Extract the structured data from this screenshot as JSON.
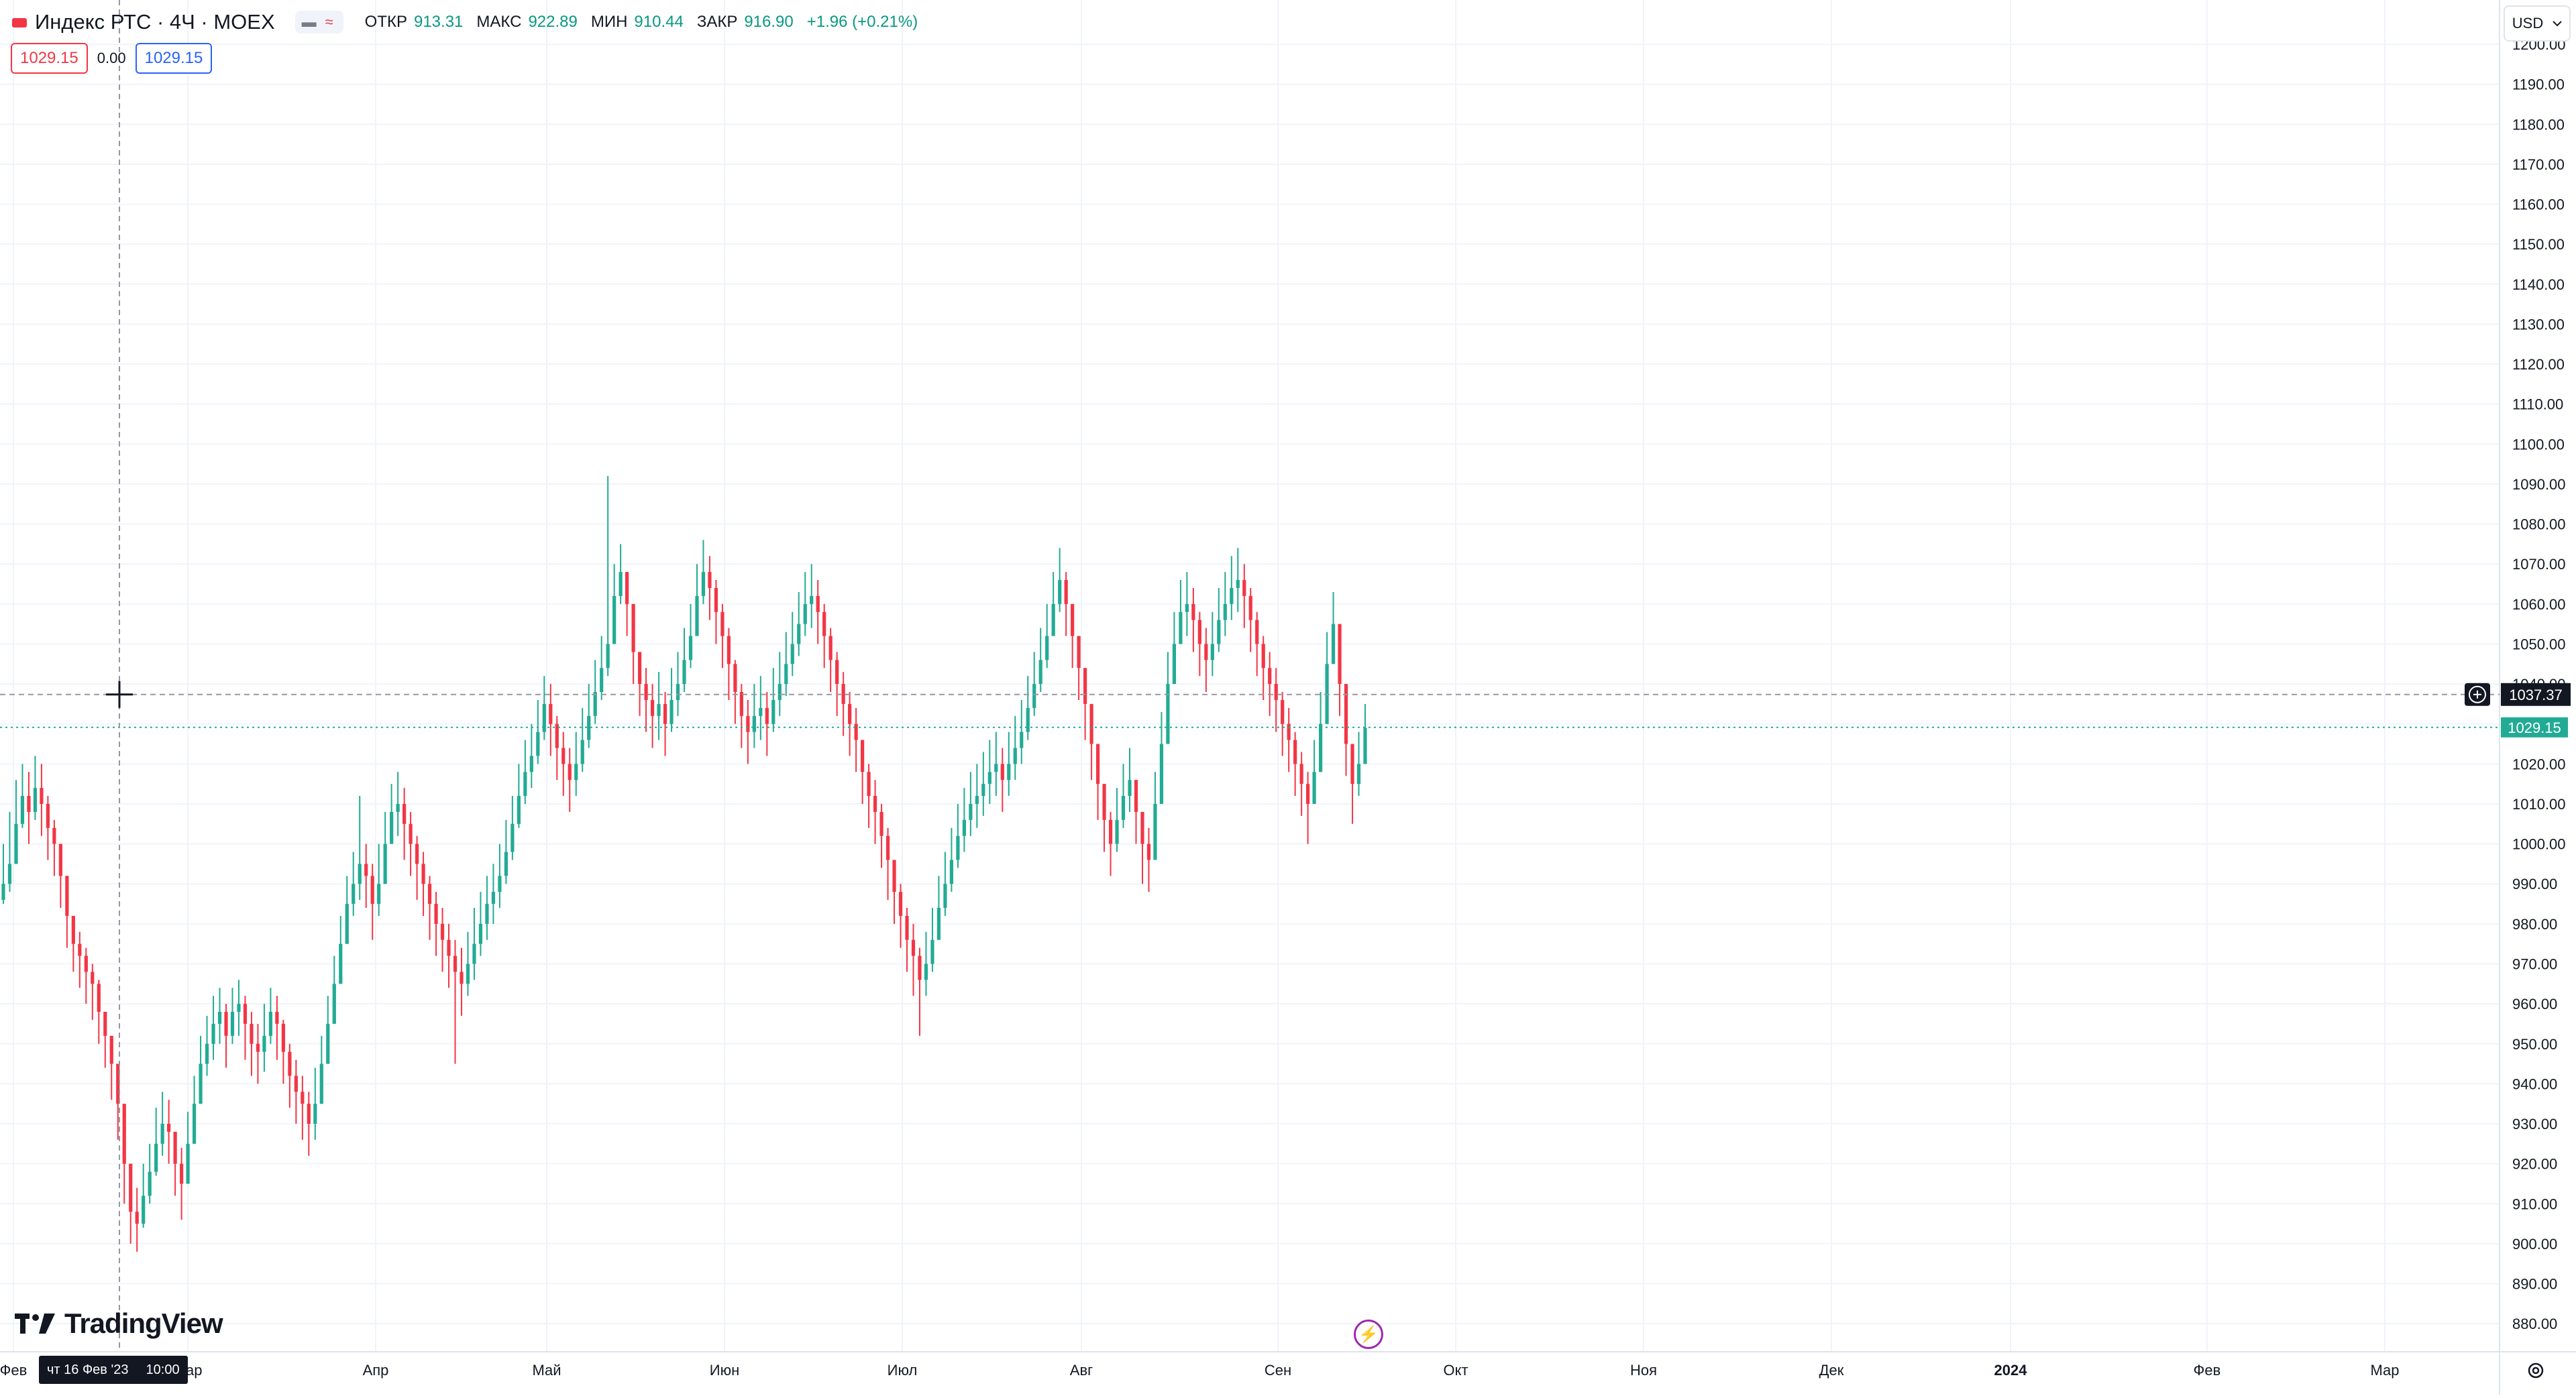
{
  "header": {
    "symbol_title": "Индекс РТС · 4Ч · MOEX",
    "mode_chip": [
      "▬",
      "≈"
    ],
    "ohlc": [
      {
        "key": "ОТКР",
        "value": "913.31"
      },
      {
        "key": "МАКС",
        "value": "922.89"
      },
      {
        "key": "МИН",
        "value": "910.44"
      },
      {
        "key": "ЗАКР",
        "value": "916.90"
      },
      {
        "key": "",
        "value": "+1.96 (+0.21%)"
      }
    ]
  },
  "trade": {
    "sell_price": "1029.15",
    "spread": "0.00",
    "buy_price": "1029.15"
  },
  "currency": {
    "label": "USD",
    "icon": "chevron-down-icon"
  },
  "crosshair": {
    "price_label": "1037.37",
    "time_label_day": "чт 16 Фев '23",
    "time_label_time": "10:00",
    "plus_icon": "plus-circle-icon"
  },
  "last_price": {
    "label": "1029.15",
    "color": "#22ab94"
  },
  "logo": {
    "text": "TradingView"
  },
  "colors": {
    "up": "#22ab94",
    "down": "#f23645",
    "grid": "#f0f3fa",
    "axis_text": "#131722"
  },
  "chart_data": {
    "type": "candlestick",
    "y_axis_ticks": [
      "1200.00",
      "1190.00",
      "1180.00",
      "1170.00",
      "1160.00",
      "1150.00",
      "1140.00",
      "1130.00",
      "1120.00",
      "1110.00",
      "1100.00",
      "1090.00",
      "1080.00",
      "1070.00",
      "1060.00",
      "1050.00",
      "1040.00",
      "1030.00",
      "1020.00",
      "1010.00",
      "1000.00",
      "990.00",
      "980.00",
      "970.00",
      "960.00",
      "950.00",
      "940.00",
      "930.00",
      "920.00",
      "910.00",
      "900.00",
      "890.00",
      "880.00"
    ],
    "x_axis_ticks": [
      {
        "label": "Фев",
        "month": 0
      },
      {
        "label": "Мар",
        "month": 1
      },
      {
        "label": "Апр",
        "month": 2
      },
      {
        "label": "Май",
        "month": 3
      },
      {
        "label": "Июн",
        "month": 4
      },
      {
        "label": "Июл",
        "month": 5
      },
      {
        "label": "Авг",
        "month": 6
      },
      {
        "label": "Сен",
        "month": 7
      },
      {
        "label": "Окт",
        "month": 8
      },
      {
        "label": "Ноя",
        "month": 9
      },
      {
        "label": "Дек",
        "month": 10
      },
      {
        "label": "2024",
        "month": 11
      },
      {
        "label": "Фев",
        "month": 12
      },
      {
        "label": "Мар",
        "month": 13
      }
    ],
    "ylim": [
      875,
      1205
    ],
    "series_close": [
      990,
      995,
      1005,
      1012,
      1008,
      1014,
      1010,
      1004,
      1000,
      992,
      982,
      975,
      972,
      968,
      965,
      958,
      952,
      945,
      935,
      920,
      908,
      905,
      912,
      918,
      925,
      930,
      928,
      920,
      915,
      925,
      935,
      945,
      950,
      955,
      958,
      952,
      958,
      960,
      955,
      950,
      948,
      952,
      958,
      955,
      948,
      942,
      938,
      935,
      930,
      935,
      945,
      955,
      965,
      975,
      985,
      990,
      995,
      992,
      985,
      990,
      1000,
      1008,
      1010,
      1005,
      1000,
      995,
      990,
      985,
      980,
      976,
      972,
      968,
      965,
      970,
      975,
      980,
      985,
      988,
      992,
      998,
      1005,
      1012,
      1018,
      1022,
      1028,
      1035,
      1030,
      1024,
      1020,
      1016,
      1020,
      1026,
      1032,
      1038,
      1044,
      1050,
      1062,
      1068,
      1060,
      1048,
      1040,
      1036,
      1032,
      1035,
      1030,
      1036,
      1040,
      1046,
      1052,
      1062,
      1068,
      1064,
      1058,
      1052,
      1045,
      1038,
      1032,
      1028,
      1032,
      1034,
      1030,
      1036,
      1040,
      1045,
      1050,
      1055,
      1060,
      1062,
      1058,
      1052,
      1046,
      1040,
      1035,
      1030,
      1026,
      1018,
      1012,
      1008,
      1002,
      996,
      988,
      982,
      976,
      972,
      966,
      970,
      976,
      984,
      990,
      996,
      1002,
      1006,
      1010,
      1012,
      1015,
      1018,
      1020,
      1016,
      1020,
      1024,
      1028,
      1034,
      1040,
      1046,
      1052,
      1060,
      1066,
      1060,
      1052,
      1044,
      1035,
      1025,
      1015,
      1006,
      1000,
      1006,
      1012,
      1016,
      1008,
      1000,
      996,
      1010,
      1025,
      1040,
      1050,
      1058,
      1060,
      1056,
      1050,
      1046,
      1050,
      1056,
      1060,
      1064,
      1066,
      1062,
      1056,
      1050,
      1044,
      1040,
      1036,
      1030,
      1026,
      1020,
      1015,
      1010,
      1018,
      1030,
      1045,
      1055,
      1040,
      1025,
      1015,
      1020,
      1029
    ],
    "series_high": [
      1000,
      1008,
      1016,
      1020,
      1018,
      1022,
      1020,
      1012,
      1006,
      1000,
      990,
      982,
      978,
      974,
      970,
      966,
      958,
      952,
      945,
      935,
      918,
      914,
      920,
      925,
      934,
      938,
      936,
      928,
      924,
      933,
      942,
      952,
      957,
      962,
      964,
      960,
      964,
      966,
      962,
      958,
      955,
      960,
      964,
      962,
      956,
      950,
      946,
      942,
      938,
      944,
      952,
      962,
      972,
      982,
      992,
      998,
      1012,
      1000,
      995,
      1000,
      1008,
      1015,
      1018,
      1014,
      1008,
      1002,
      998,
      992,
      988,
      984,
      980,
      976,
      974,
      978,
      984,
      988,
      992,
      995,
      1000,
      1006,
      1012,
      1020,
      1026,
      1030,
      1036,
      1042,
      1040,
      1032,
      1028,
      1024,
      1028,
      1034,
      1040,
      1046,
      1052,
      1092,
      1070,
      1075,
      1068,
      1056,
      1048,
      1044,
      1040,
      1043,
      1038,
      1044,
      1048,
      1054,
      1060,
      1070,
      1076,
      1072,
      1066,
      1060,
      1054,
      1046,
      1040,
      1036,
      1040,
      1042,
      1038,
      1044,
      1048,
      1053,
      1058,
      1063,
      1068,
      1070,
      1066,
      1060,
      1054,
      1048,
      1043,
      1038,
      1034,
      1026,
      1020,
      1016,
      1010,
      1004,
      996,
      990,
      984,
      980,
      974,
      978,
      984,
      992,
      998,
      1004,
      1010,
      1014,
      1018,
      1020,
      1023,
      1026,
      1028,
      1024,
      1028,
      1032,
      1036,
      1042,
      1048,
      1054,
      1060,
      1068,
      1074,
      1068,
      1060,
      1052,
      1043,
      1033,
      1023,
      1014,
      1008,
      1014,
      1020,
      1024,
      1016,
      1008,
      1004,
      1018,
      1033,
      1048,
      1058,
      1066,
      1068,
      1064,
      1058,
      1054,
      1058,
      1064,
      1068,
      1072,
      1074,
      1070,
      1064,
      1058,
      1052,
      1048,
      1044,
      1038,
      1034,
      1028,
      1023,
      1018,
      1026,
      1038,
      1053,
      1063,
      1048,
      1033,
      1023,
      1028,
      1035
    ],
    "series_low": [
      985,
      988,
      998,
      1004,
      1000,
      1006,
      1002,
      996,
      992,
      984,
      974,
      968,
      964,
      960,
      956,
      950,
      944,
      936,
      926,
      910,
      900,
      898,
      904,
      910,
      917,
      922,
      920,
      912,
      906,
      916,
      926,
      936,
      942,
      946,
      950,
      944,
      950,
      952,
      946,
      942,
      940,
      943,
      950,
      946,
      940,
      934,
      930,
      926,
      922,
      926,
      936,
      946,
      956,
      966,
      976,
      982,
      986,
      984,
      976,
      982,
      992,
      1000,
      1002,
      996,
      992,
      986,
      982,
      976,
      972,
      968,
      964,
      945,
      957,
      962,
      966,
      972,
      976,
      980,
      984,
      990,
      996,
      1004,
      1010,
      1014,
      1020,
      1026,
      1022,
      1016,
      1012,
      1008,
      1012,
      1018,
      1024,
      1030,
      1036,
      1042,
      1054,
      1060,
      1052,
      1040,
      1032,
      1028,
      1024,
      1026,
      1022,
      1028,
      1032,
      1038,
      1044,
      1054,
      1060,
      1056,
      1050,
      1044,
      1036,
      1030,
      1024,
      1020,
      1024,
      1026,
      1022,
      1028,
      1032,
      1037,
      1042,
      1047,
      1052,
      1054,
      1050,
      1044,
      1038,
      1032,
      1027,
      1022,
      1018,
      1010,
      1004,
      1000,
      994,
      986,
      980,
      974,
      968,
      962,
      952,
      962,
      968,
      976,
      982,
      988,
      994,
      998,
      1002,
      1004,
      1007,
      1010,
      1012,
      1008,
      1012,
      1016,
      1020,
      1026,
      1032,
      1038,
      1044,
      1052,
      1058,
      1052,
      1044,
      1036,
      1026,
      1016,
      1006,
      998,
      992,
      998,
      1004,
      1008,
      1000,
      990,
      988,
      1002,
      1017,
      1032,
      1042,
      1050,
      1052,
      1048,
      1042,
      1038,
      1042,
      1048,
      1052,
      1056,
      1058,
      1054,
      1048,
      1042,
      1036,
      1032,
      1028,
      1022,
      1018,
      1012,
      1007,
      1000,
      1010,
      1022,
      1037,
      1047,
      1032,
      1017,
      1005,
      1012,
      1021
    ],
    "current_price": 1029.15,
    "crosshair_price": 1037.37
  }
}
